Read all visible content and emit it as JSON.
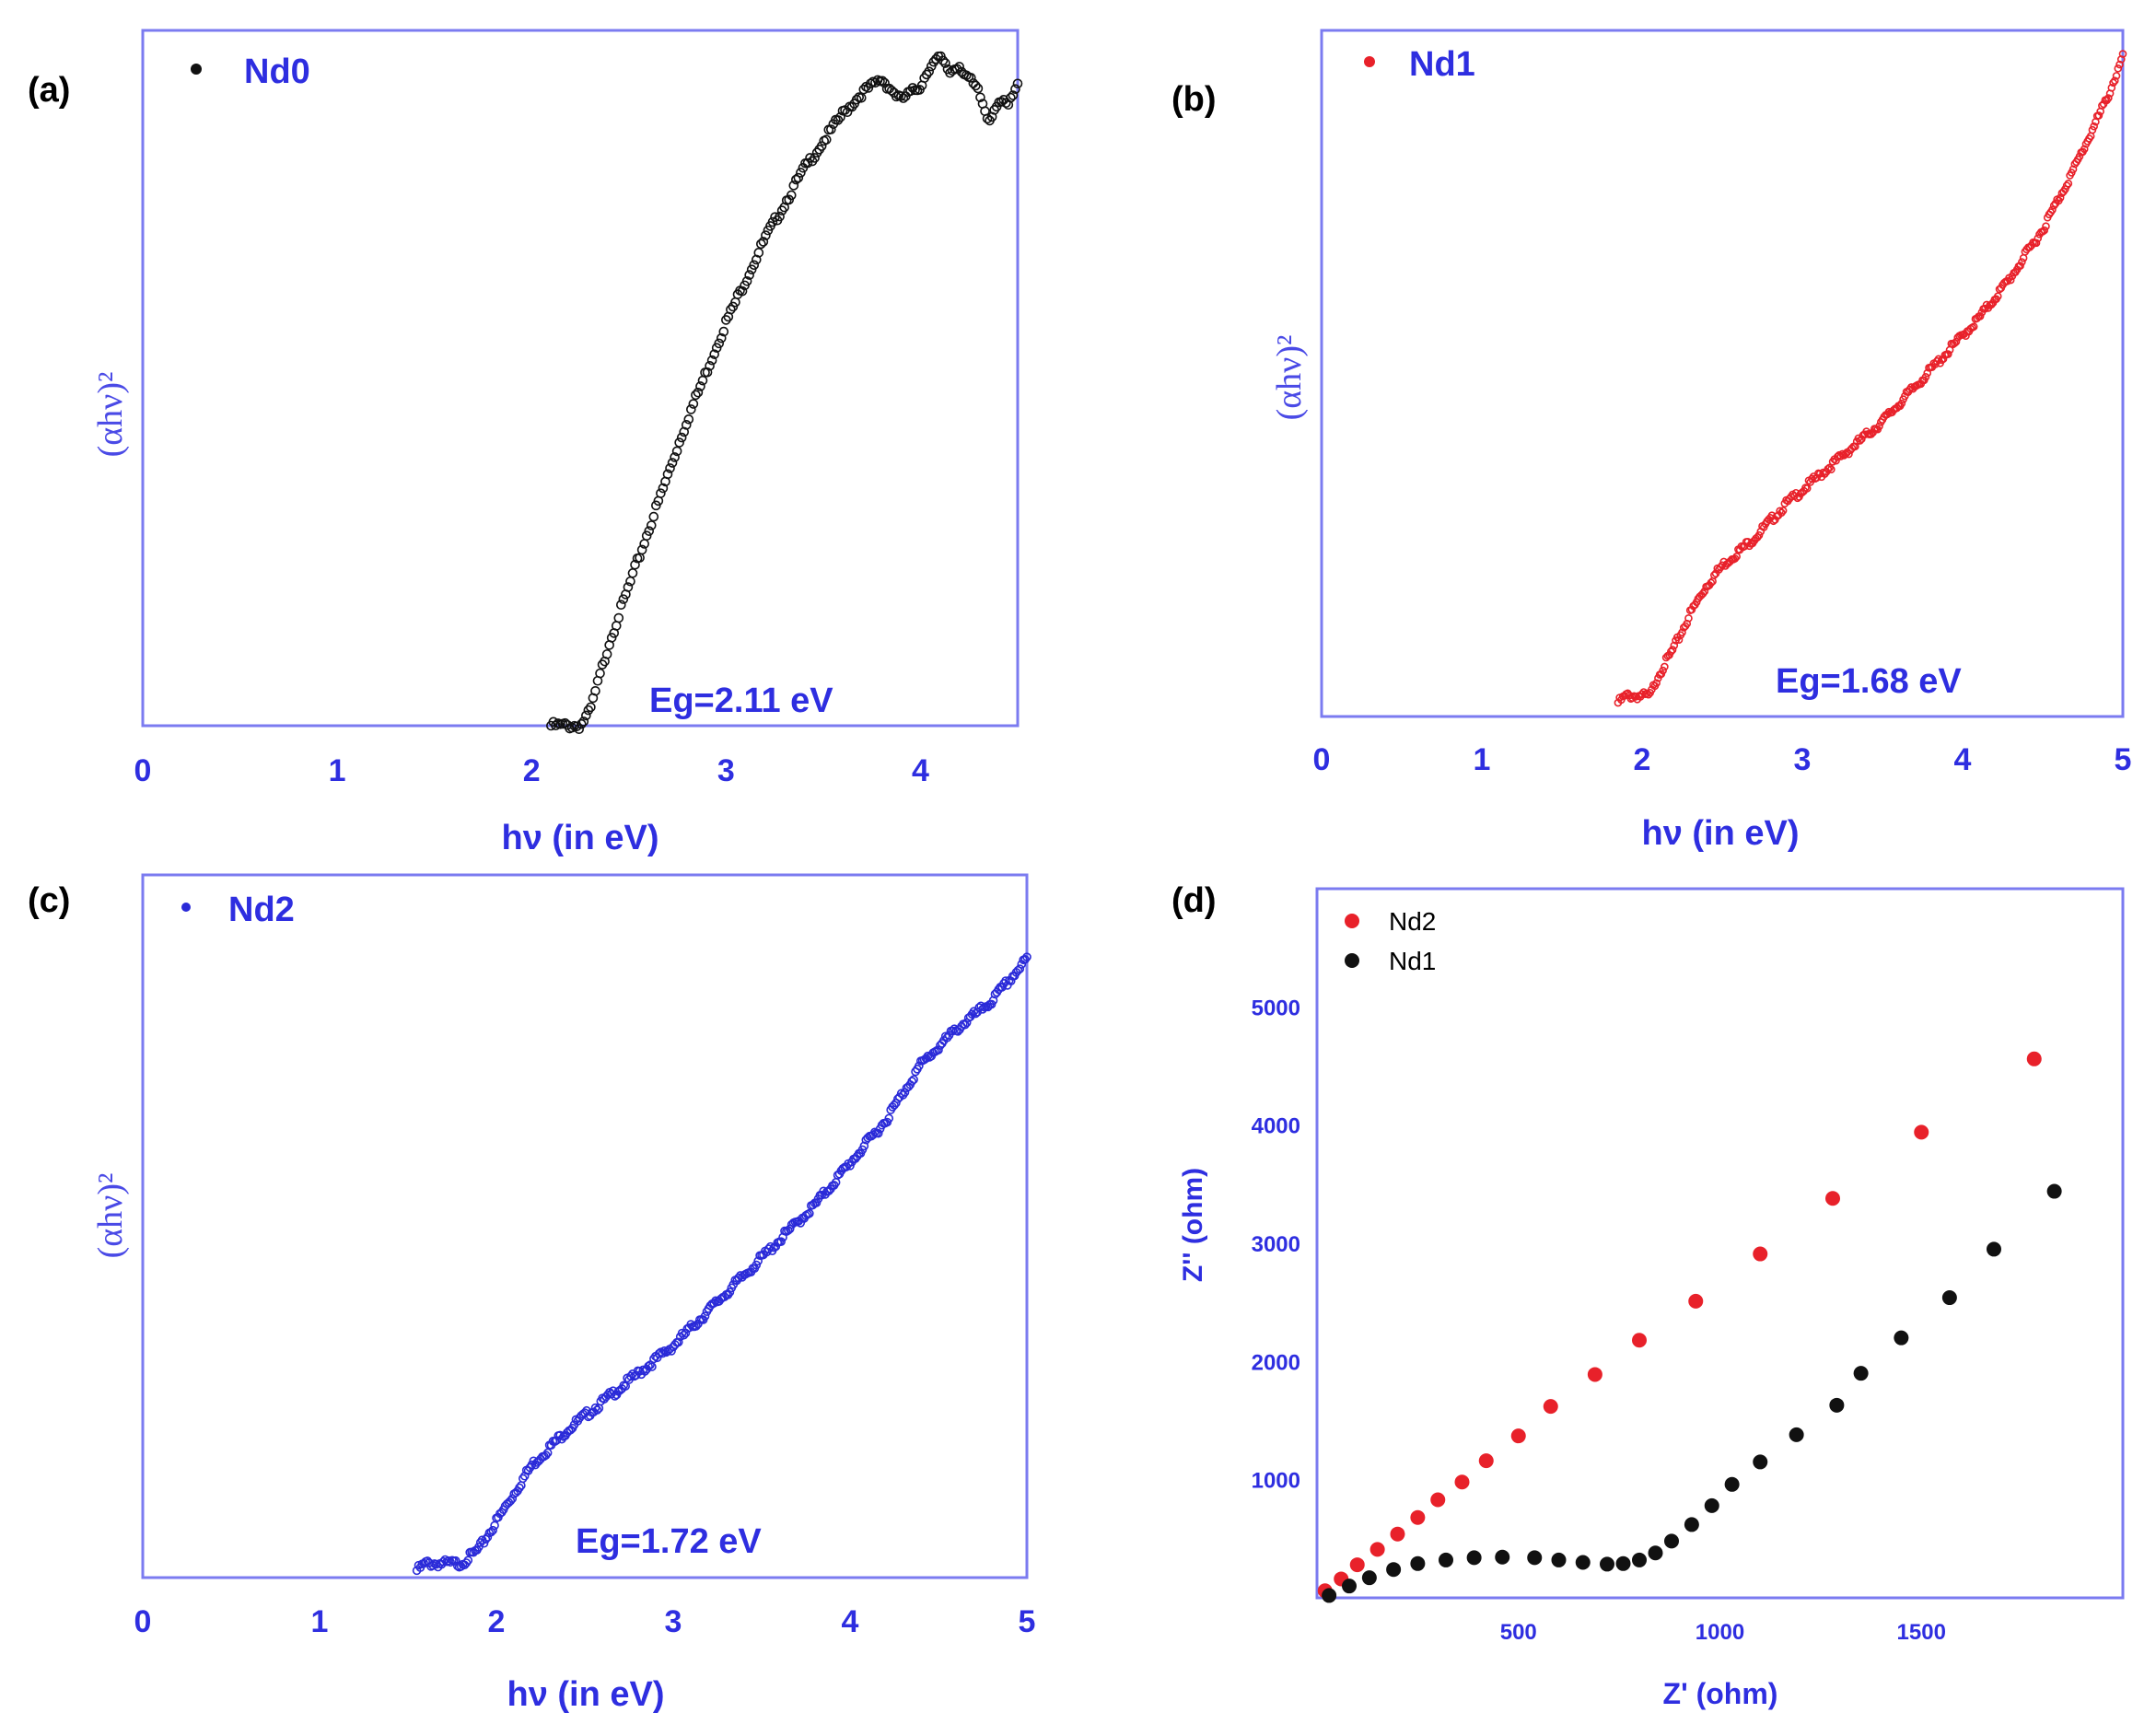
{
  "colors": {
    "axis": "#7b7bf0",
    "text": "#2e2ee0",
    "nd0": "#111111",
    "nd1": "#e8212a",
    "nd2": "#2a2ad8"
  },
  "chart_data": [
    {
      "panel": "(a)",
      "type": "scatter",
      "xlabel": "hν (in eV)",
      "ylabel": "(αhν)²",
      "xlim": [
        0,
        4.5
      ],
      "ylim": [
        0,
        1
      ],
      "xticks": [
        "0",
        "1",
        "2",
        "3",
        "4"
      ],
      "annotation": "Eg=2.11 eV",
      "legend": "Nd0",
      "color": "#111111",
      "series": [
        {
          "name": "Nd0",
          "x": [
            2.1,
            2.15,
            2.2,
            2.25,
            2.3,
            2.35,
            2.4,
            2.5,
            2.6,
            2.7,
            2.8,
            2.9,
            3.0,
            3.1,
            3.2,
            3.3,
            3.4,
            3.5,
            3.6,
            3.7,
            3.8,
            3.9,
            4.0,
            4.05,
            4.1,
            4.15,
            4.2,
            4.25,
            4.3,
            4.35,
            4.4,
            4.45,
            4.5
          ],
          "y": [
            0.0,
            0.0,
            0.0,
            0.0,
            0.02,
            0.07,
            0.12,
            0.2,
            0.28,
            0.36,
            0.44,
            0.51,
            0.58,
            0.64,
            0.7,
            0.75,
            0.8,
            0.84,
            0.88,
            0.91,
            0.93,
            0.9,
            0.92,
            0.95,
            0.96,
            0.94,
            0.95,
            0.93,
            0.91,
            0.87,
            0.9,
            0.89,
            0.92
          ]
        }
      ]
    },
    {
      "panel": "(b)",
      "type": "scatter",
      "xlabel": "hν (in eV)",
      "ylabel": "(αhν)²",
      "xlim": [
        0,
        5
      ],
      "ylim": [
        0,
        1
      ],
      "xticks": [
        "0",
        "1",
        "2",
        "3",
        "4",
        "5"
      ],
      "annotation": "Eg=1.68 eV",
      "legend": "Nd1",
      "color": "#e8212a",
      "series": [
        {
          "name": "Nd1",
          "x": [
            1.85,
            1.9,
            1.95,
            2.0,
            2.05,
            2.1,
            2.2,
            2.3,
            2.4,
            2.5,
            2.7,
            2.9,
            3.1,
            3.3,
            3.5,
            3.7,
            3.9,
            4.1,
            4.3,
            4.5,
            4.7,
            4.9,
            5.0
          ],
          "y": [
            0.02,
            0.03,
            0.03,
            0.03,
            0.03,
            0.06,
            0.1,
            0.15,
            0.19,
            0.22,
            0.26,
            0.31,
            0.35,
            0.39,
            0.43,
            0.48,
            0.53,
            0.58,
            0.64,
            0.71,
            0.8,
            0.9,
            0.96
          ]
        }
      ]
    },
    {
      "panel": "(c)",
      "type": "scatter",
      "xlabel": "hν (in eV)",
      "ylabel": "(αhν)²",
      "xlim": [
        0,
        5
      ],
      "ylim": [
        0,
        1
      ],
      "xticks": [
        "0",
        "1",
        "2",
        "3",
        "4",
        "5"
      ],
      "annotation": "Eg=1.72 eV",
      "legend": "Nd2",
      "color": "#2a2ad8",
      "series": [
        {
          "name": "Nd2",
          "x": [
            1.55,
            1.6,
            1.7,
            1.8,
            1.9,
            2.0,
            2.1,
            2.2,
            2.4,
            2.6,
            2.8,
            3.0,
            3.2,
            3.4,
            3.6,
            3.8,
            4.0,
            4.2,
            4.4,
            4.6,
            4.8,
            4.9,
            5.0
          ],
          "y": [
            0.01,
            0.02,
            0.02,
            0.02,
            0.04,
            0.08,
            0.12,
            0.16,
            0.21,
            0.25,
            0.29,
            0.33,
            0.38,
            0.43,
            0.48,
            0.53,
            0.59,
            0.65,
            0.73,
            0.78,
            0.82,
            0.85,
            0.88
          ]
        }
      ]
    },
    {
      "panel": "(d)",
      "type": "scatter",
      "xlabel": "Z' (ohm)",
      "ylabel": "Z'' (ohm)",
      "xlim": [
        0,
        2000
      ],
      "ylim": [
        0,
        6000
      ],
      "xticks": [
        "500",
        "1000",
        "1500"
      ],
      "yticks": [
        "1000",
        "2000",
        "3000",
        "4000",
        "5000"
      ],
      "legend_items": [
        "Nd2",
        "Nd1"
      ],
      "series": [
        {
          "name": "Nd2",
          "color": "#e8212a",
          "x": [
            20,
            60,
            100,
            150,
            200,
            250,
            300,
            360,
            420,
            500,
            580,
            690,
            800,
            940,
            1100,
            1280,
            1500,
            1780
          ],
          "y": [
            60,
            160,
            280,
            410,
            540,
            680,
            830,
            980,
            1160,
            1370,
            1620,
            1890,
            2180,
            2510,
            2910,
            3380,
            3940,
            4560
          ]
        },
        {
          "name": "Nd1",
          "color": "#111111",
          "x": [
            30,
            80,
            130,
            190,
            250,
            320,
            390,
            460,
            540,
            600,
            660,
            720,
            760,
            800,
            840,
            880,
            930,
            980,
            1030,
            1100,
            1190,
            1290,
            1350,
            1450,
            1570,
            1680,
            1830
          ],
          "y": [
            20,
            100,
            170,
            240,
            290,
            320,
            340,
            345,
            340,
            320,
            300,
            285,
            290,
            320,
            380,
            480,
            620,
            780,
            960,
            1150,
            1380,
            1630,
            1900,
            2200,
            2540,
            2950,
            3440
          ]
        }
      ]
    }
  ]
}
